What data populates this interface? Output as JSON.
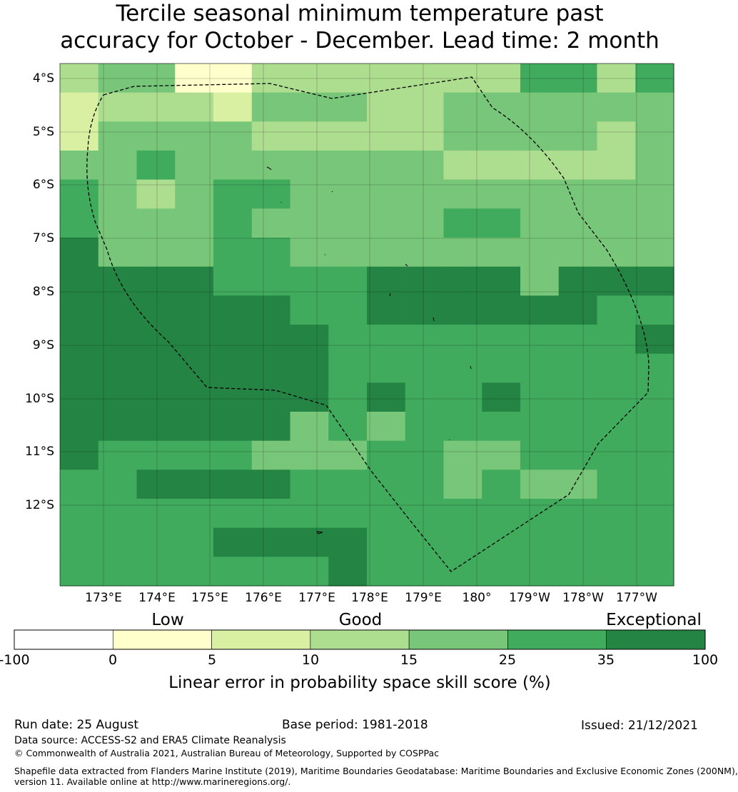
{
  "title": {
    "line1": "Tercile seasonal minimum temperature past",
    "line2": "accuracy for October - December. Lead time: 2 month"
  },
  "map": {
    "lat_labels": [
      "4°S",
      "5°S",
      "6°S",
      "7°S",
      "8°S",
      "9°S",
      "10°S",
      "11°S",
      "12°S"
    ],
    "lon_labels": [
      "173°E",
      "174°E",
      "175°E",
      "176°E",
      "177°E",
      "178°E",
      "179°E",
      "180°",
      "179°W",
      "178°W",
      "177°W"
    ],
    "legend_bins": [
      "-100..0",
      "0..5",
      "5..10",
      "10..15",
      "15..25",
      "25..35",
      "35..100"
    ],
    "bin_colors": [
      "#ffffff",
      "#ffffcc",
      "#d9f0a3",
      "#addd8e",
      "#78c679",
      "#41ab5d",
      "#238443"
    ],
    "grid": [
      "3441133333335535",
      "2333244433444444",
      "2444433333444434",
      "4454444444333334",
      "5434554444444444",
      "5444544444554444",
      "6444554444444444",
      "6666555566664666",
      "6666665566666655",
      "6666666555555556",
      "6666666555555555",
      "6666666565565555",
      "6666664545555555",
      "6555544455445555",
      "5566665555454455",
      "5555555555555555",
      "5555666655555555",
      "5555555655555555"
    ],
    "boundary_style": "dashed EEZ outline",
    "gridlines": true
  },
  "colorbar": {
    "categories": [
      "Low",
      "Good",
      "Exceptional"
    ],
    "ticks": [
      "-100",
      "0",
      "5",
      "10",
      "15",
      "25",
      "35",
      "100"
    ],
    "title": "Linear error in probability space skill score (%)"
  },
  "footer": {
    "run_date": "Run date: 25 August",
    "base_period": "Base period: 1981-2018",
    "issued": "Issued: 21/12/2021",
    "data_source": "Data source: ACCESS-S2 and ERA5 Climate Reanalysis",
    "copyright": "© Commonwealth of Australia 2021, Australian Bureau of Meteorology, Supported by COSPPac",
    "shapefile_1": "Shapefile data extracted from Flanders Marine Institute (2019), Maritime Boundaries Geodatabase: Maritime Boundaries and Exclusive Economic Zones (200NM),",
    "shapefile_2": "version 11. Available online at http://www.marineregions.org/."
  }
}
